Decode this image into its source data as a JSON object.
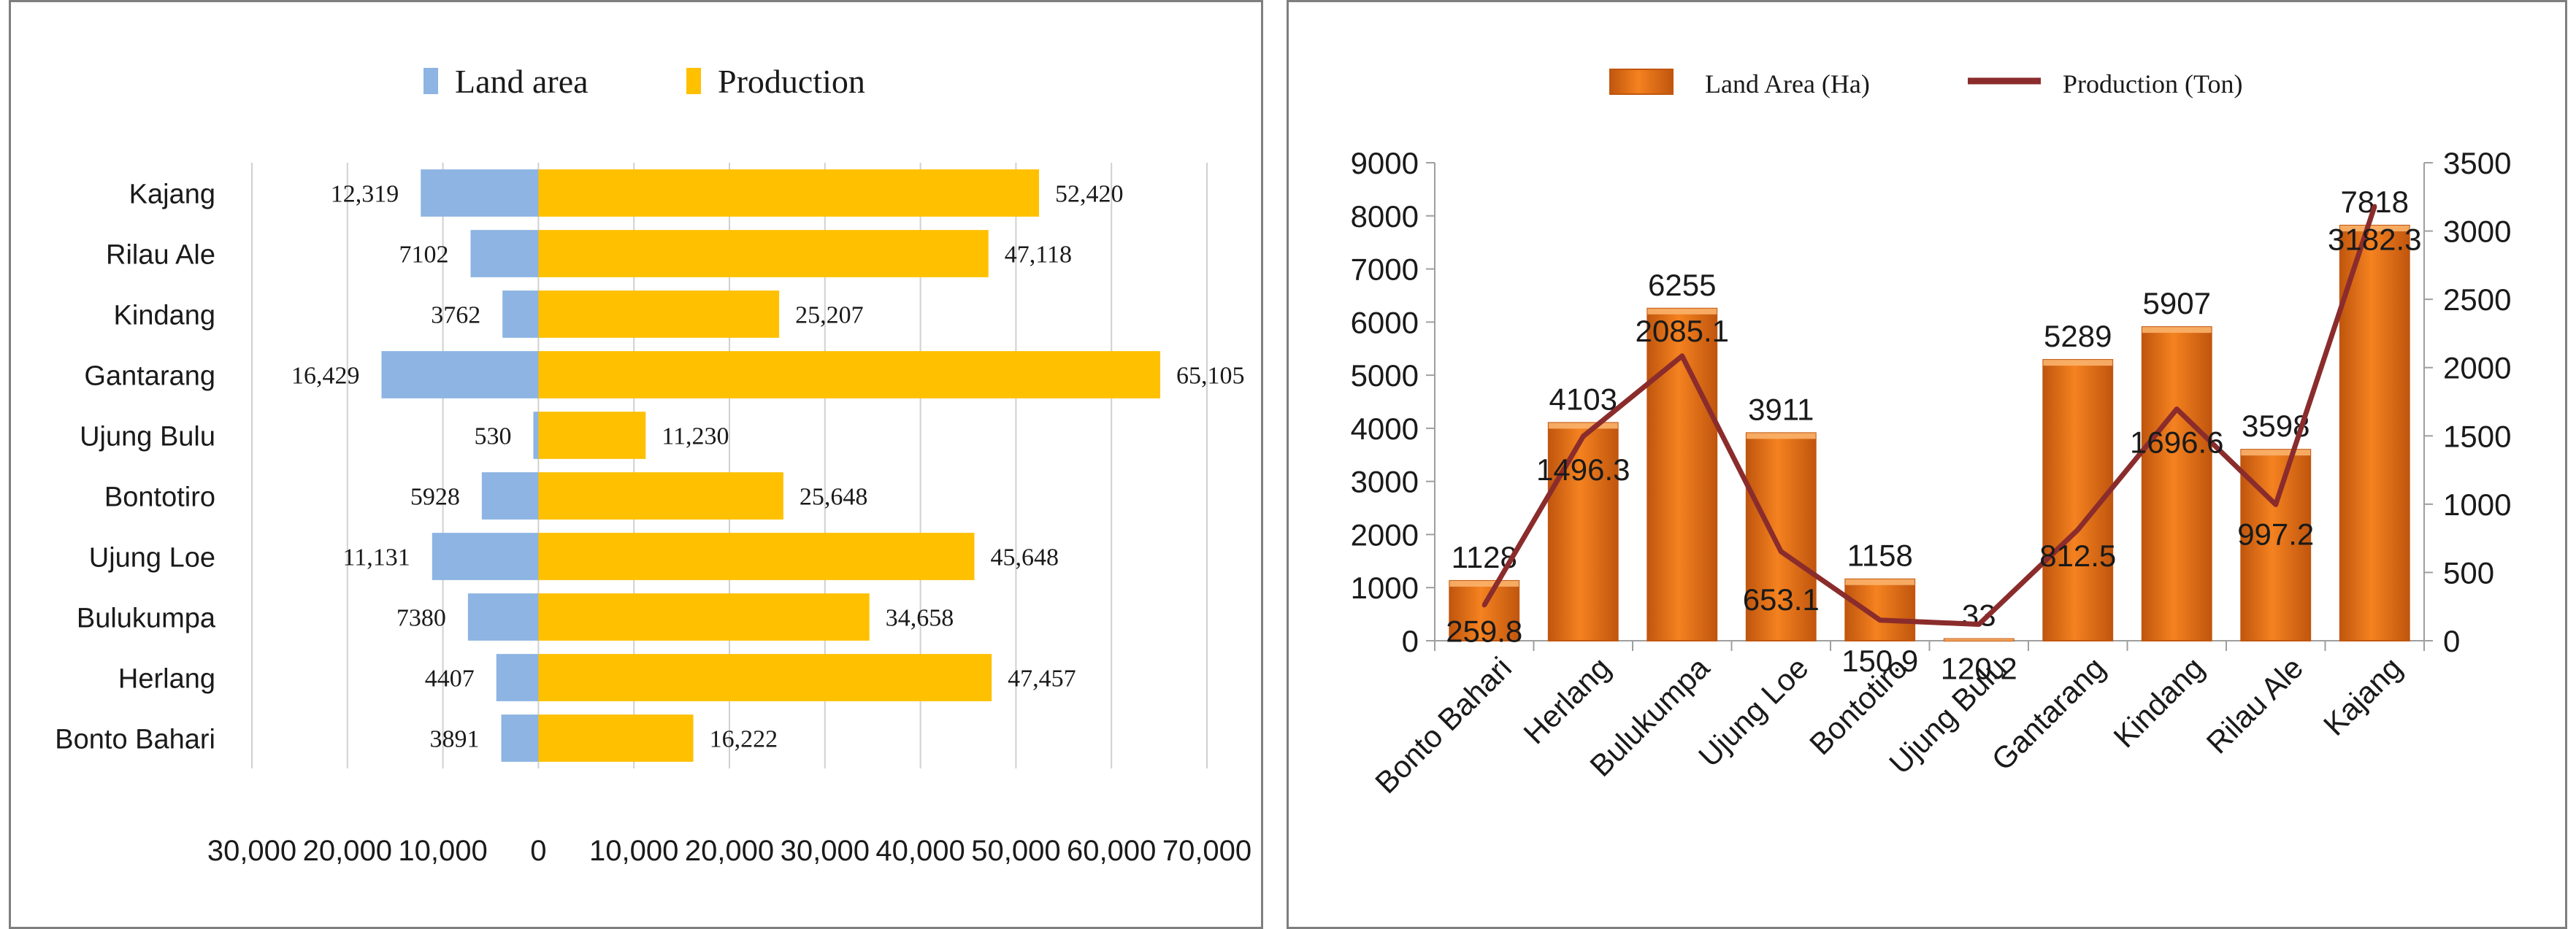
{
  "colors": {
    "land_area": "#8DB4E2",
    "production": "#FFC000",
    "bar_orange": "#F58220",
    "bar_orange_dark": "#C0560E",
    "line_red": "#8B2C2C",
    "grid": "#D0D0D0",
    "axis": "#9F9F9F",
    "text": "#1A1A1A"
  },
  "chart_data": [
    {
      "type": "bar",
      "orientation": "horizontal",
      "title": "",
      "legend": [
        "Land area",
        "Production"
      ],
      "legend_position": "top",
      "categories": [
        "Kajang",
        "Rilau Ale",
        "Kindang",
        "Gantarang",
        "Ujung Bulu",
        "Bontotiro",
        "Ujung Loe",
        "Bulukumpa",
        "Herlang",
        "Bonto Bahari"
      ],
      "series": [
        {
          "name": "Land area",
          "values": [
            12319,
            7102,
            3762,
            16429,
            530,
            5928,
            11131,
            7380,
            4407,
            3891
          ],
          "labels": [
            "12,319",
            "7102",
            "3762",
            "16,429",
            "530",
            "5928",
            "11,131",
            "7380",
            "4407",
            "3891"
          ]
        },
        {
          "name": "Production",
          "values": [
            52420,
            47118,
            25207,
            65105,
            11230,
            25648,
            45648,
            34658,
            47457,
            16222
          ],
          "labels": [
            "52,420",
            "47,118",
            "25,207",
            "65,105",
            "11,230",
            "25,648",
            "45,648",
            "34,658",
            "47,457",
            "16,222"
          ]
        }
      ],
      "xlim": [
        -30000,
        70000
      ],
      "x_ticks": [
        -30000,
        -20000,
        -10000,
        0,
        10000,
        20000,
        30000,
        40000,
        50000,
        60000,
        70000
      ],
      "x_tick_labels": [
        "30,000",
        "20,000",
        "10,000",
        "0",
        "10,000",
        "20,000",
        "30,000",
        "40,000",
        "50,000",
        "60,000",
        "70,000"
      ]
    },
    {
      "type": "bar",
      "combo": "bar+line",
      "title": "",
      "legend": [
        "Land Area (Ha)",
        "Production (Ton)"
      ],
      "legend_position": "top",
      "categories": [
        "Bonto Bahari",
        "Herlang",
        "Bulukumpa",
        "Ujung Loe",
        "Bontotiro",
        "Ujung Bulu",
        "Gantarang",
        "Kindang",
        "Rilau Ale",
        "Kajang"
      ],
      "series": [
        {
          "name": "Land Area (Ha)",
          "type": "bar",
          "axis": "left",
          "values": [
            1128,
            4103,
            6255,
            3911,
            1158,
            33,
            5289,
            5907,
            3598,
            7818
          ],
          "labels": [
            "1128",
            "4103",
            "6255",
            "3911",
            "1158",
            "33",
            "5289",
            "5907",
            "3598",
            "7818"
          ]
        },
        {
          "name": "Production (Ton)",
          "type": "line",
          "axis": "right",
          "values": [
            259.8,
            1496.3,
            2085.1,
            653.1,
            150.9,
            120.2,
            812.5,
            1696.6,
            997.2,
            3182.3
          ],
          "labels": [
            "259.8",
            "1496.3",
            "2085.1",
            "653.1",
            "150.9",
            "120.2",
            "812.5",
            "1696.6",
            "997.2",
            "3182.3"
          ]
        }
      ],
      "ylim_left": [
        0,
        9000
      ],
      "y_ticks_left": [
        "0",
        "1000",
        "2000",
        "3000",
        "4000",
        "5000",
        "6000",
        "7000",
        "8000",
        "9000"
      ],
      "ylim_right": [
        0,
        3500
      ],
      "y_ticks_right": [
        "0",
        "500",
        "1000",
        "1500",
        "2000",
        "2500",
        "3000",
        "3500"
      ]
    }
  ]
}
